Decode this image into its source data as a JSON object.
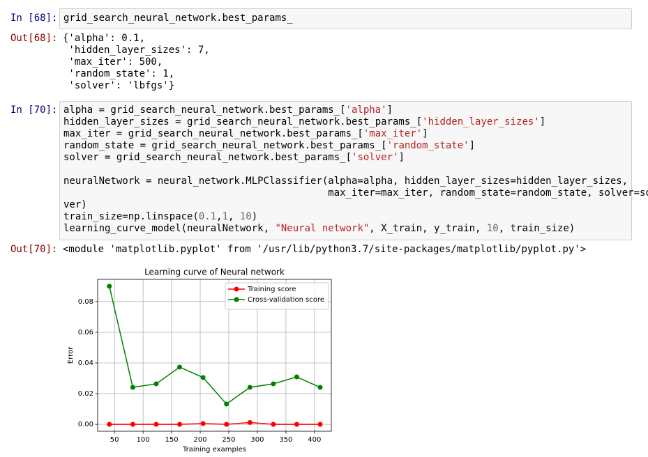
{
  "cells": [
    {
      "prompt_in": "In [68]:",
      "code_blocks": [
        [
          "grid_search_neural_network.best_params_"
        ]
      ],
      "prompt_out": "Out[68]:",
      "output": [
        "{'alpha': 0.1,",
        " 'hidden_layer_sizes': 7,",
        " 'max_iter': 500,",
        " 'random_state': 1,",
        " 'solver': 'lbfgs'}"
      ]
    },
    {
      "prompt_in": "In [70]:",
      "code_blocks": [
        [
          "alpha = grid_search_neural_network.best_params_['alpha']",
          "hidden_layer_sizes = grid_search_neural_network.best_params_['hidden_layer_sizes']",
          "max_iter = grid_search_neural_network.best_params_['max_iter']",
          "random_state = grid_search_neural_network.best_params_['random_state']",
          "solver = grid_search_neural_network.best_params_['solver']"
        ],
        [
          "neuralNetwork = neural_network.MLPClassifier(alpha=alpha, hidden_layer_sizes=hidden_layer_sizes,",
          "                                             max_iter=max_iter, random_state=random_state, solver=sol",
          "ver)",
          "train_size=np.linspace(0.1,1, 10)",
          "learning_curve_model(neuralNetwork, \"Neural network\", X_train, y_train, 10, train_size)"
        ]
      ],
      "prompt_out": "Out[70]:",
      "output": [
        "<module 'matplotlib.pyplot' from '/usr/lib/python3.7/site-packages/matplotlib/pyplot.py'>"
      ]
    }
  ],
  "chart_data": {
    "type": "line",
    "title": "Learning curve of Neural network",
    "x_label": "Training examples",
    "y_label": "Error",
    "x": [
      41,
      82,
      123,
      164,
      205,
      246,
      287,
      328,
      369,
      410
    ],
    "series": [
      {
        "name": "Training score",
        "color": "#ff0000",
        "values": [
          0,
          0,
          0,
          0,
          0.0005,
          0,
          0.0012,
          0,
          0,
          0
        ]
      },
      {
        "name": "Cross-validation score",
        "color": "#008000",
        "values": [
          0.09,
          0.0241,
          0.0264,
          0.0373,
          0.0305,
          0.0132,
          0.0241,
          0.0264,
          0.0309,
          0.0241
        ]
      }
    ],
    "xlim": [
      20.5,
      429.5
    ],
    "ylim": [
      -0.0045,
      0.0945
    ],
    "xticks": [
      50,
      100,
      150,
      200,
      250,
      300,
      350,
      400
    ],
    "yticks": [
      {
        "value": 0,
        "label": "0.00"
      },
      {
        "value": 0.02,
        "label": "0.02"
      },
      {
        "value": 0.04,
        "label": "0.04"
      },
      {
        "value": 0.06,
        "label": "0.06"
      },
      {
        "value": 0.08,
        "label": "0.08"
      }
    ],
    "grid": true,
    "legend": "upper right"
  }
}
